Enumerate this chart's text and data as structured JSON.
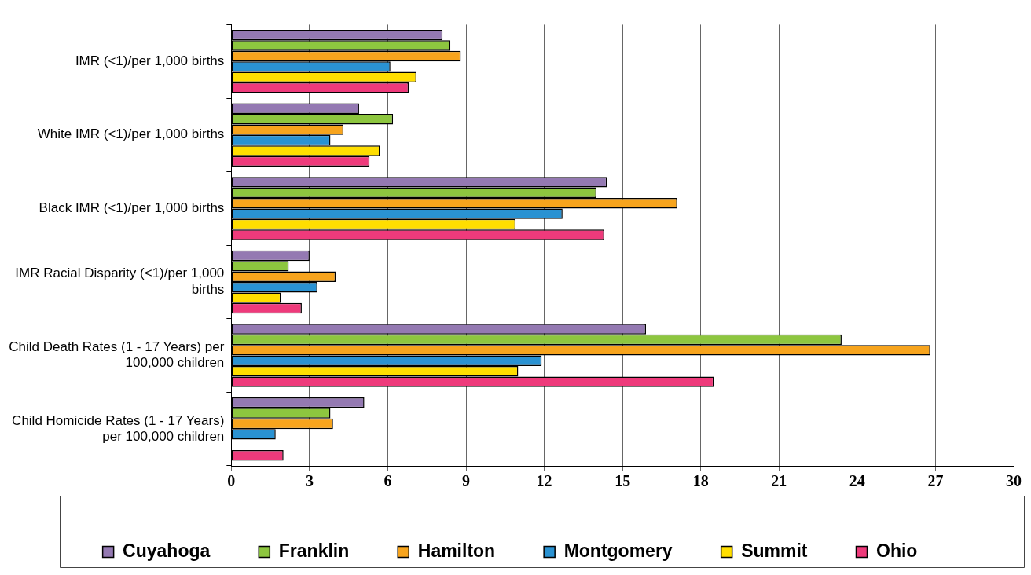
{
  "chart_data": {
    "type": "bar",
    "orientation": "horizontal",
    "categories": [
      "IMR (<1)/per 1,000 births",
      "White IMR (<1)/per 1,000 births",
      "Black IMR (<1)/per 1,000 births",
      "IMR Racial Disparity (<1)/per 1,000 births",
      "Child Death Rates (1 - 17 Years) per 100,000 children",
      "Child Homicide Rates (1 - 17 Years) per 100,000 children"
    ],
    "series": [
      {
        "name": "Cuyahoga",
        "color": "#9479b2",
        "values": [
          8.1,
          4.9,
          14.4,
          3.0,
          15.9,
          5.1
        ]
      },
      {
        "name": "Franklin",
        "color": "#8dc63f",
        "values": [
          8.4,
          6.2,
          14.0,
          2.2,
          23.4,
          3.8
        ]
      },
      {
        "name": "Hamilton",
        "color": "#f7a41d",
        "values": [
          8.8,
          4.3,
          17.1,
          4.0,
          26.8,
          3.9
        ]
      },
      {
        "name": "Montgomery",
        "color": "#2a92d2",
        "values": [
          6.1,
          3.8,
          12.7,
          3.3,
          11.9,
          1.7
        ]
      },
      {
        "name": "Summit",
        "color": "#ffde00",
        "values": [
          7.1,
          5.7,
          10.9,
          1.9,
          11.0,
          null
        ]
      },
      {
        "name": "Ohio",
        "color": "#ee3a7b",
        "values": [
          6.8,
          5.3,
          14.3,
          2.7,
          18.5,
          2.0
        ]
      }
    ],
    "xlim": [
      0,
      30
    ],
    "xticks": [
      0,
      3,
      6,
      9,
      12,
      15,
      18,
      21,
      24,
      27,
      30
    ],
    "grid": "x",
    "legend": "bottom"
  }
}
